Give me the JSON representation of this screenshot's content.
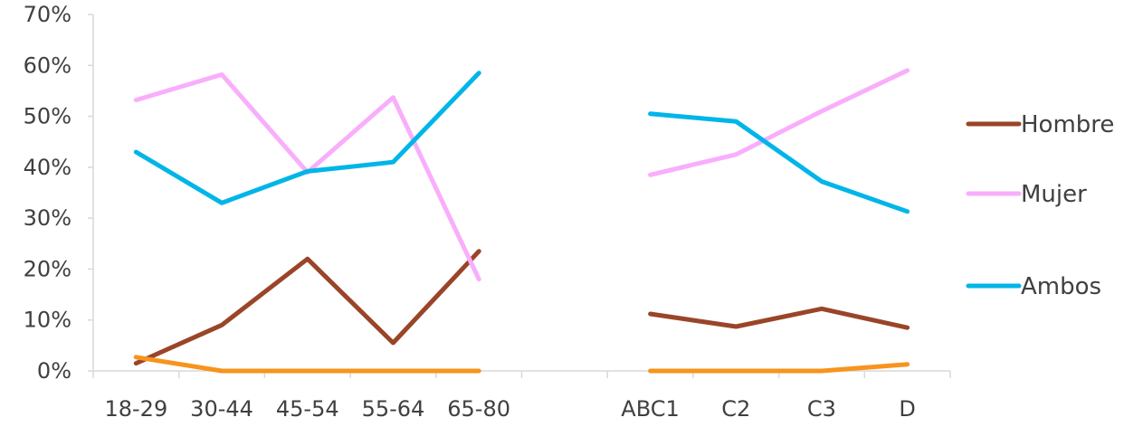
{
  "chart_data": {
    "type": "line",
    "title": "",
    "xlabel": "",
    "ylabel": "",
    "ylim": [
      0,
      0.7
    ],
    "y_ticks": [
      "0%",
      "10%",
      "20%",
      "30%",
      "40%",
      "50%",
      "60%",
      "70%"
    ],
    "categories": [
      "18-29",
      "30-44",
      "45-54",
      "55-64",
      "65-80",
      "",
      "ABC1",
      "C2",
      "C3",
      "D"
    ],
    "grid": false,
    "legend_position": "right",
    "series": [
      {
        "name": "Hombre",
        "color": "#9a4528",
        "values": [
          0.015,
          0.09,
          0.22,
          0.055,
          0.235,
          null,
          0.112,
          0.087,
          0.122,
          0.085
        ]
      },
      {
        "name": "Mujer",
        "color": "#f9aefc",
        "values": [
          0.532,
          0.582,
          0.39,
          0.537,
          0.18,
          null,
          0.385,
          0.425,
          0.51,
          0.59
        ]
      },
      {
        "name": "Ambos",
        "color": "#00b5e8",
        "values": [
          0.43,
          0.33,
          0.392,
          0.41,
          0.585,
          null,
          0.505,
          0.49,
          0.372,
          0.313
        ]
      },
      {
        "name": "",
        "color": "#f7941d",
        "values": [
          0.027,
          0.0,
          0.0,
          0.0,
          0.0,
          null,
          0.0,
          0.0,
          0.0,
          0.013
        ]
      }
    ],
    "legend": [
      "Hombre",
      "Mujer",
      "Ambos"
    ]
  }
}
